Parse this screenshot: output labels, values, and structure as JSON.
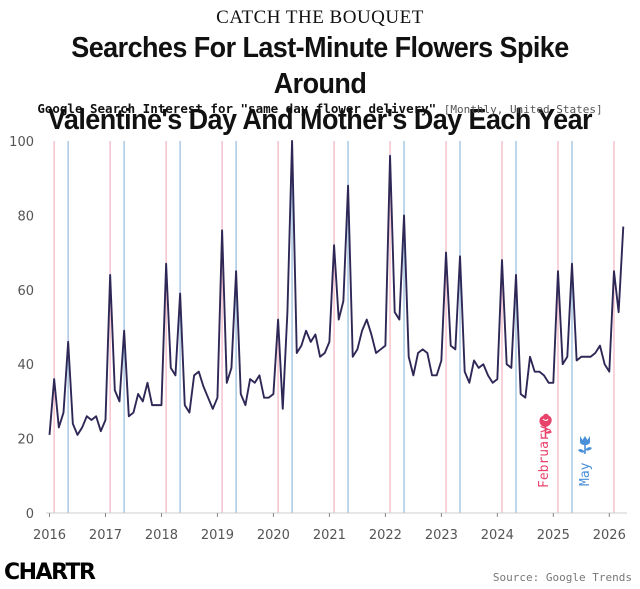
{
  "header": {
    "kicker": "CATCH THE BOUQUET",
    "title_line1": "Searches For Last-Minute Flowers Spike Around",
    "title_line2": "Valentine's Day And Mother's Day Each Year",
    "subtitle": "Google Search Interest for \"same day flower delivery\"",
    "subtitle_note": "[Monthly, United States]"
  },
  "footer": {
    "logo": "CHARTR",
    "source": "Source: Google Trends"
  },
  "colors": {
    "line": "#2e2856",
    "february": "#e8426b",
    "may": "#4a90d9",
    "february_gridline": "#f5c3cf",
    "may_gridline": "#a8c8e2",
    "axis_text": "#555555"
  },
  "chart_data": {
    "type": "line",
    "series": [
      {
        "values": [
          21,
          36,
          23,
          27,
          46,
          24,
          21,
          23,
          26,
          25,
          26,
          22,
          25,
          64,
          33,
          30,
          49,
          26,
          27,
          32,
          30,
          35,
          29,
          29,
          29,
          67,
          39,
          37,
          59,
          29,
          27,
          37,
          38,
          34,
          31,
          28,
          31,
          76,
          35,
          39,
          65,
          32,
          29,
          36,
          35,
          37,
          31,
          31,
          32,
          52,
          28,
          54,
          100,
          43,
          45,
          49,
          46,
          48,
          42,
          43,
          46,
          72,
          52,
          57,
          88,
          42,
          44,
          49,
          52,
          48,
          43,
          44,
          45,
          96,
          54,
          52,
          80,
          42,
          37,
          43,
          44,
          43,
          37,
          37,
          41,
          70,
          45,
          44,
          69,
          38,
          35,
          41,
          39,
          40,
          37,
          35,
          36,
          68,
          40,
          39,
          64,
          32,
          31,
          42,
          38,
          38,
          37,
          35,
          35,
          65,
          40,
          42,
          67,
          41,
          42,
          42,
          42,
          43,
          45,
          40,
          38,
          65,
          54,
          77
        ]
      }
    ],
    "x_start": "2016-01",
    "interval": "monthly",
    "x_tick_labels": [
      "2016",
      "2017",
      "2018",
      "2019",
      "2020",
      "2021",
      "2022",
      "2023",
      "2024",
      "2025",
      "2026"
    ],
    "y_ticks": [
      0,
      20,
      40,
      60,
      80,
      100
    ],
    "ylim": [
      0,
      100
    ],
    "reference_lines": [
      {
        "month": "February",
        "color": "#e8426b"
      },
      {
        "month": "May",
        "color": "#4a90d9"
      }
    ],
    "annotations": [
      {
        "label": "February",
        "icon": "rose-icon",
        "color": "#e8426b"
      },
      {
        "label": "May",
        "icon": "tulip-icon",
        "color": "#4a90d9"
      }
    ],
    "grid": false,
    "legend": "none"
  }
}
